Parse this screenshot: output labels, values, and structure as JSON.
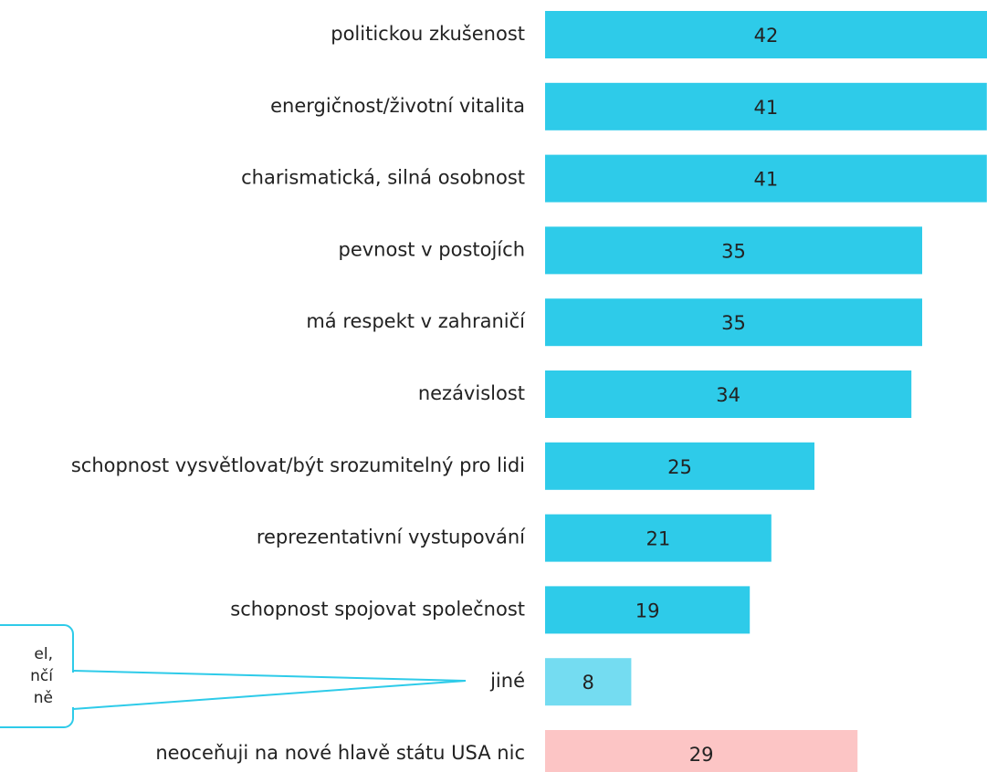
{
  "chart_data": {
    "type": "bar",
    "orientation": "horizontal",
    "categories": [
      "politickou zkušenost",
      "energičnost/životní vitalita",
      "charismatická, silná osobnost",
      "pevnost v postojích",
      "má respekt v zahraničí",
      "nezávislost",
      "schopnost vysvětlovat/být srozumitelný pro lidi",
      "reprezentativní vystupování",
      "schopnost spojovat společnost",
      "jiné",
      "neoceňuji na nové hlavě státu USA nic"
    ],
    "values": [
      42,
      41,
      41,
      35,
      35,
      34,
      25,
      21,
      19,
      8,
      29
    ],
    "colors": [
      "#2ecbe9",
      "#2ecbe9",
      "#2ecbe9",
      "#2ecbe9",
      "#2ecbe9",
      "#2ecbe9",
      "#2ecbe9",
      "#2ecbe9",
      "#2ecbe9",
      "#74dcf1",
      "#fcc5c5"
    ],
    "annotation": {
      "lines": [
        "el,",
        "nčí",
        "ně"
      ]
    }
  }
}
